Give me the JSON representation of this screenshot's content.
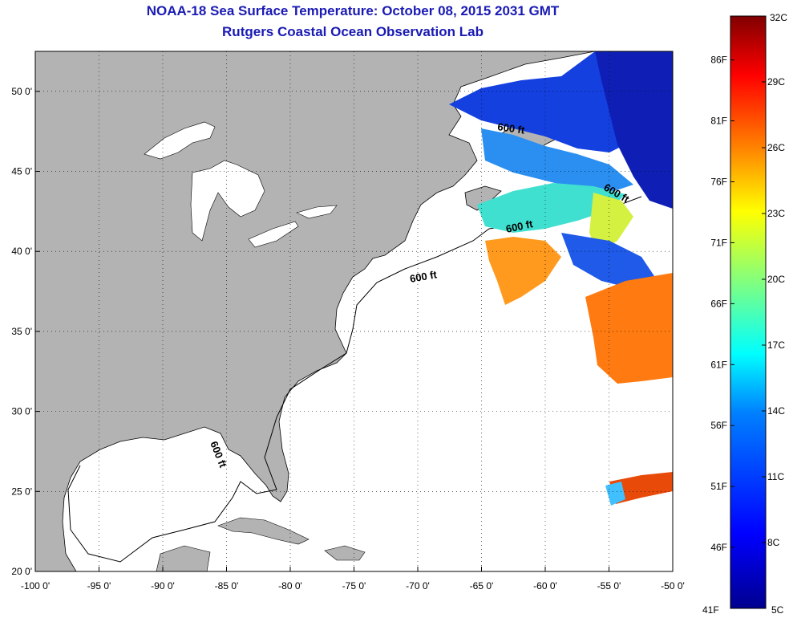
{
  "title": "NOAA-18 Sea Surface Temperature:  October 08, 2015 2031 GMT",
  "subtitle": "Rutgers Coastal Ocean Observation Lab",
  "map": {
    "lon_range": [
      -100,
      -50
    ],
    "lat_range": [
      20,
      52.5
    ],
    "lon_ticks": [
      {
        "value": -100,
        "label": "-100 0'"
      },
      {
        "value": -95,
        "label": "-95 0'"
      },
      {
        "value": -90,
        "label": "-90 0'"
      },
      {
        "value": -85,
        "label": "-85 0'"
      },
      {
        "value": -80,
        "label": "-80 0'"
      },
      {
        "value": -75,
        "label": "-75 0'"
      },
      {
        "value": -70,
        "label": "-70 0'"
      },
      {
        "value": -65,
        "label": "-65 0'"
      },
      {
        "value": -60,
        "label": "-60 0'"
      },
      {
        "value": -55,
        "label": "-55 0'"
      },
      {
        "value": -50,
        "label": "-50 0'"
      }
    ],
    "lat_ticks": [
      {
        "value": 50,
        "label": "50 0'"
      },
      {
        "value": 45,
        "label": "45 0'"
      },
      {
        "value": 40,
        "label": "40 0'"
      },
      {
        "value": 35,
        "label": "35 0'"
      },
      {
        "value": 30,
        "label": "30 0'"
      },
      {
        "value": 25,
        "label": "25 0'"
      },
      {
        "value": 20,
        "label": "20 0'"
      }
    ],
    "land_color": "#b3b3b3",
    "ocean_color": "#ffffff",
    "grid": "dotted",
    "contour_label": "600 ft"
  },
  "colorbar": {
    "min_label": "5C",
    "max_label": "32C",
    "min_f_label": "41F",
    "celsius_ticks": [
      {
        "value": 32,
        "label": "32C"
      },
      {
        "value": 29,
        "label": "29C"
      },
      {
        "value": 26,
        "label": "26C"
      },
      {
        "value": 23,
        "label": "23C"
      },
      {
        "value": 20,
        "label": "20C"
      },
      {
        "value": 17,
        "label": "17C"
      },
      {
        "value": 14,
        "label": "14C"
      },
      {
        "value": 11,
        "label": "11C"
      },
      {
        "value": 8,
        "label": "8C"
      }
    ],
    "fahrenheit_ticks": [
      {
        "value": 86,
        "label": "86F"
      },
      {
        "value": 81,
        "label": "81F"
      },
      {
        "value": 76,
        "label": "76F"
      },
      {
        "value": 71,
        "label": "71F"
      },
      {
        "value": 66,
        "label": "66F"
      },
      {
        "value": 61,
        "label": "61F"
      },
      {
        "value": 56,
        "label": "56F"
      },
      {
        "value": 51,
        "label": "51F"
      },
      {
        "value": 46,
        "label": "46F"
      }
    ],
    "colors": [
      "#00008f",
      "#0000ff",
      "#0080ff",
      "#00ffff",
      "#80ff80",
      "#ffff00",
      "#ff8000",
      "#ff0000",
      "#800000"
    ]
  }
}
